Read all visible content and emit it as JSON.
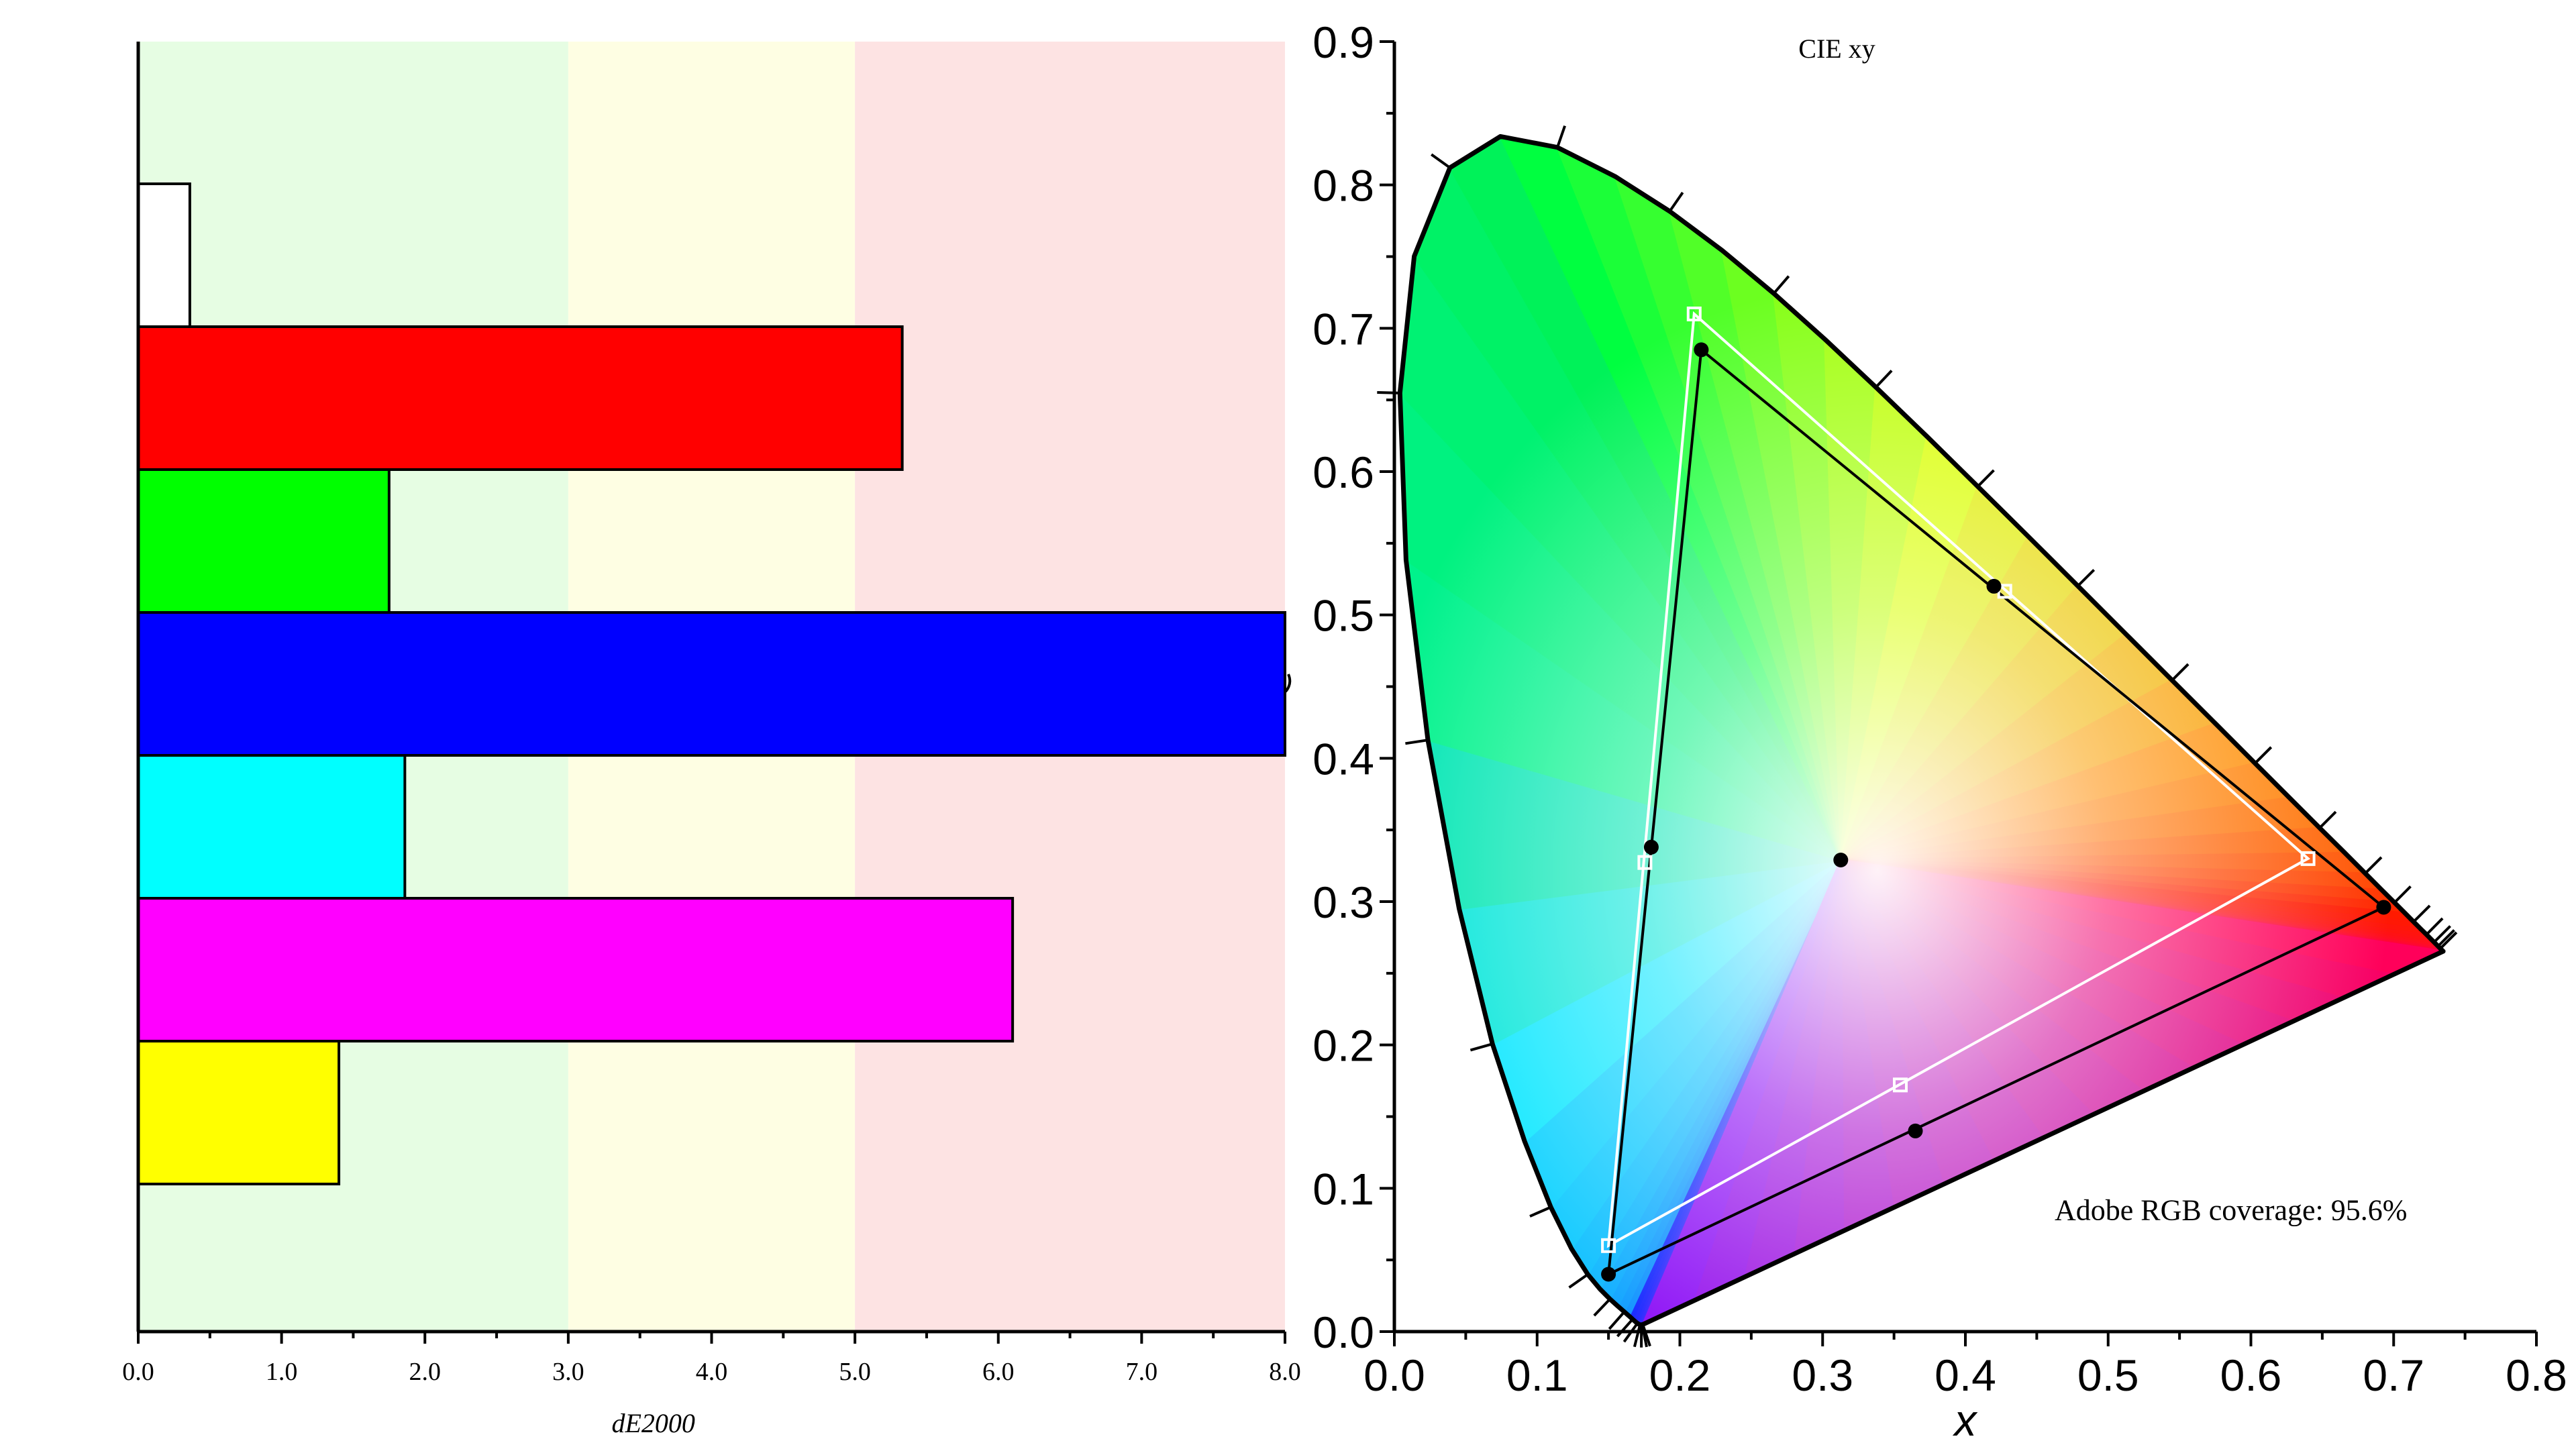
{
  "chart_data": [
    {
      "type": "bar",
      "orientation": "horizontal",
      "title": "",
      "xlabel": "dE2000",
      "ylabel": "",
      "xlim": [
        0,
        8
      ],
      "x_ticks": [
        "0.0",
        "1.0",
        "2.0",
        "3.0",
        "4.0",
        "5.0",
        "6.0",
        "7.0",
        "8.0"
      ],
      "bands": [
        {
          "from": 0,
          "to": 3,
          "color": "#e6fde3"
        },
        {
          "from": 3,
          "to": 5,
          "color": "#fefee3"
        },
        {
          "from": 5,
          "to": 8,
          "color": "#fde3e3"
        }
      ],
      "bars": [
        {
          "color": "#ffffff",
          "value": 0.36
        },
        {
          "color": "#ff0000",
          "value": 5.33
        },
        {
          "color": "#00ff00",
          "value": 1.75
        },
        {
          "color": "#0000ff",
          "value": 8.0,
          "clipped": true
        },
        {
          "color": "#00ffff",
          "value": 1.86
        },
        {
          "color": "#ff00ff",
          "value": 6.1
        },
        {
          "color": "#ffff00",
          "value": 1.4
        }
      ]
    },
    {
      "type": "scatter",
      "title": "CIE xy",
      "xlabel": "x",
      "ylabel": "",
      "xlim": [
        0,
        0.8
      ],
      "ylim": [
        0,
        0.9
      ],
      "x_ticks": [
        "0.0",
        "0.1",
        "0.2",
        "0.3",
        "0.4",
        "0.5",
        "0.6",
        "0.7",
        "0.8"
      ],
      "y_ticks": [
        "0.0",
        "0.1",
        "0.2",
        "0.3",
        "0.4",
        "0.5",
        "0.6",
        "0.7",
        "0.8",
        "0.9"
      ],
      "annotation": "Adobe RGB coverage: 95.6%",
      "series": [
        {
          "marker": "square",
          "color": "#ffffff",
          "points": [
            [
              0.21,
              0.71
            ],
            [
              0.64,
              0.33
            ],
            [
              0.15,
              0.06
            ],
            [
              0.4276,
              0.5165
            ],
            [
              0.3544,
              0.1721
            ],
            [
              0.1755,
              0.3273
            ]
          ]
        },
        {
          "marker": "circle",
          "color": "#000000",
          "points": [
            [
              0.215,
              0.685
            ],
            [
              0.693,
              0.296
            ],
            [
              0.15,
              0.04
            ],
            [
              0.42,
              0.52
            ],
            [
              0.365,
              0.14
            ],
            [
              0.18,
              0.338
            ]
          ]
        },
        {
          "marker": "circle",
          "color": "#000000",
          "points": [
            [
              0.3127,
              0.329
            ]
          ]
        }
      ]
    }
  ]
}
